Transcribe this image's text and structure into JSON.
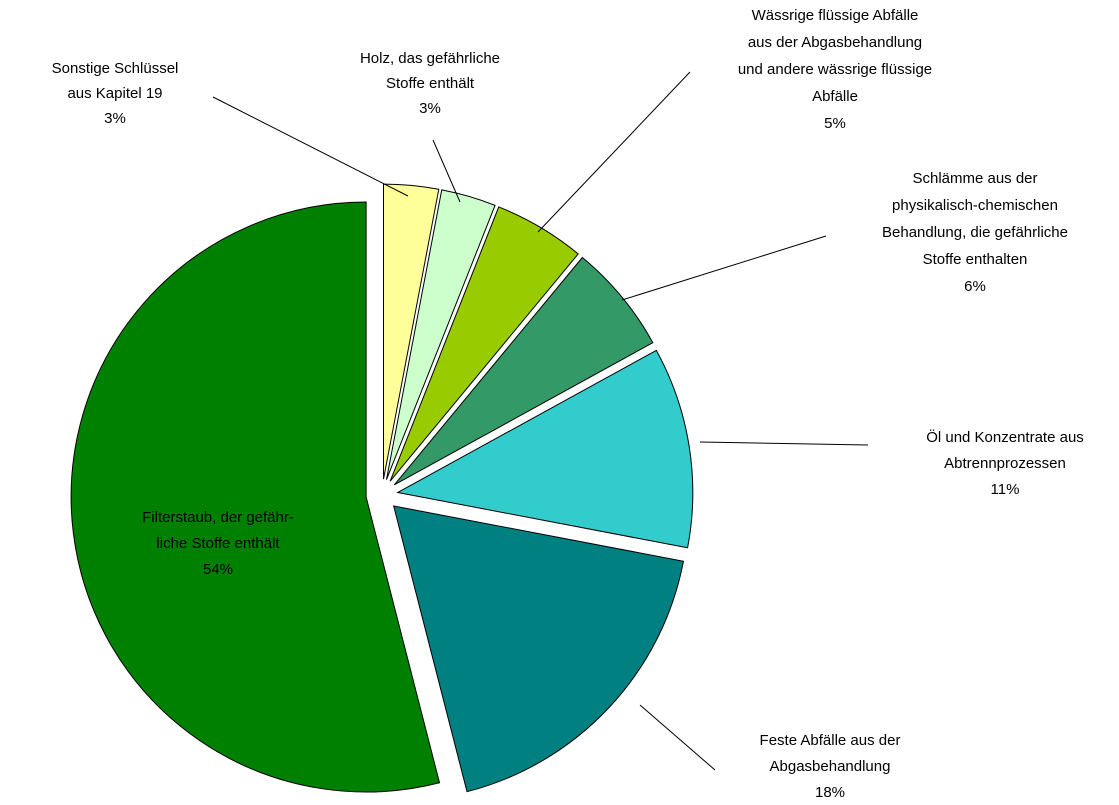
{
  "chart_data": {
    "type": "pie",
    "categories": [
      [
        "Sonstige Schlüssel",
        "aus Kapitel 19"
      ],
      [
        "Holz, das gefährliche",
        "Stoffe enthält"
      ],
      [
        "Wässrige flüssige Abfälle",
        "aus der Abgasbehandlung",
        "und andere wässrige flüssige",
        "Abfälle"
      ],
      [
        "Schlämme aus der",
        "physikalisch-chemischen",
        "Behandlung, die gefährliche",
        "Stoffe enthalten"
      ],
      [
        "Öl und Konzentrate aus",
        "Abtrennprozessen"
      ],
      [
        "Feste Abfälle aus der",
        "Abgasbehandlung"
      ],
      [
        "Filterstaub, der gefähr-",
        "liche Stoffe enthält"
      ]
    ],
    "values": [
      3,
      3,
      5,
      6,
      11,
      18,
      54
    ],
    "value_labels": [
      "3%",
      "3%",
      "5%",
      "6%",
      "11%",
      "18%",
      "54%"
    ],
    "colors": [
      "#ffff99",
      "#ccffcc",
      "#99cc00",
      "#339966",
      "#33cccc",
      "#008080",
      "#008000"
    ]
  }
}
